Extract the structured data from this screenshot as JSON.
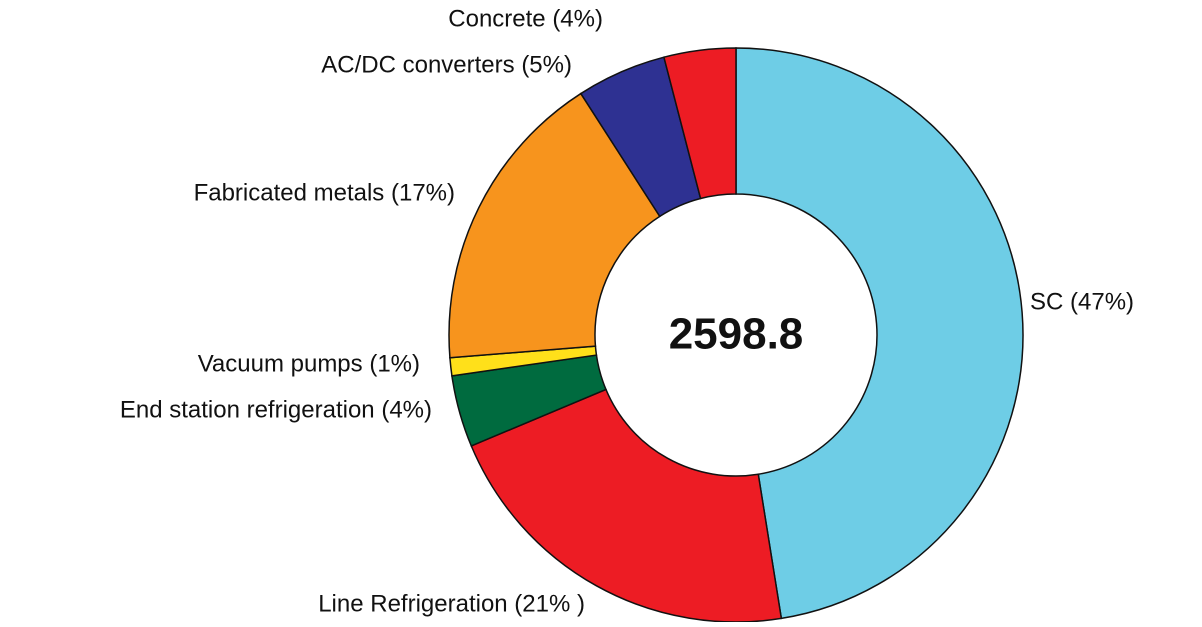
{
  "chart_data": {
    "type": "donut",
    "categories": [
      "SC (47%)",
      "Line Refrigeration (21%  )",
      "End station refrigeration (4%)",
      "Vacuum pumps (1%)",
      "Fabricated metals (17%)",
      "AC/DC converters (5%)",
      "Concrete (4%)"
    ],
    "values": [
      47,
      21,
      4,
      1,
      17,
      5,
      4
    ],
    "colors": [
      "#6ecde6",
      "#ed1c24",
      "#006b3f",
      "#ffe01a",
      "#f7941d",
      "#2e3192",
      "#ed1c24"
    ],
    "center_label": "2598.8"
  }
}
